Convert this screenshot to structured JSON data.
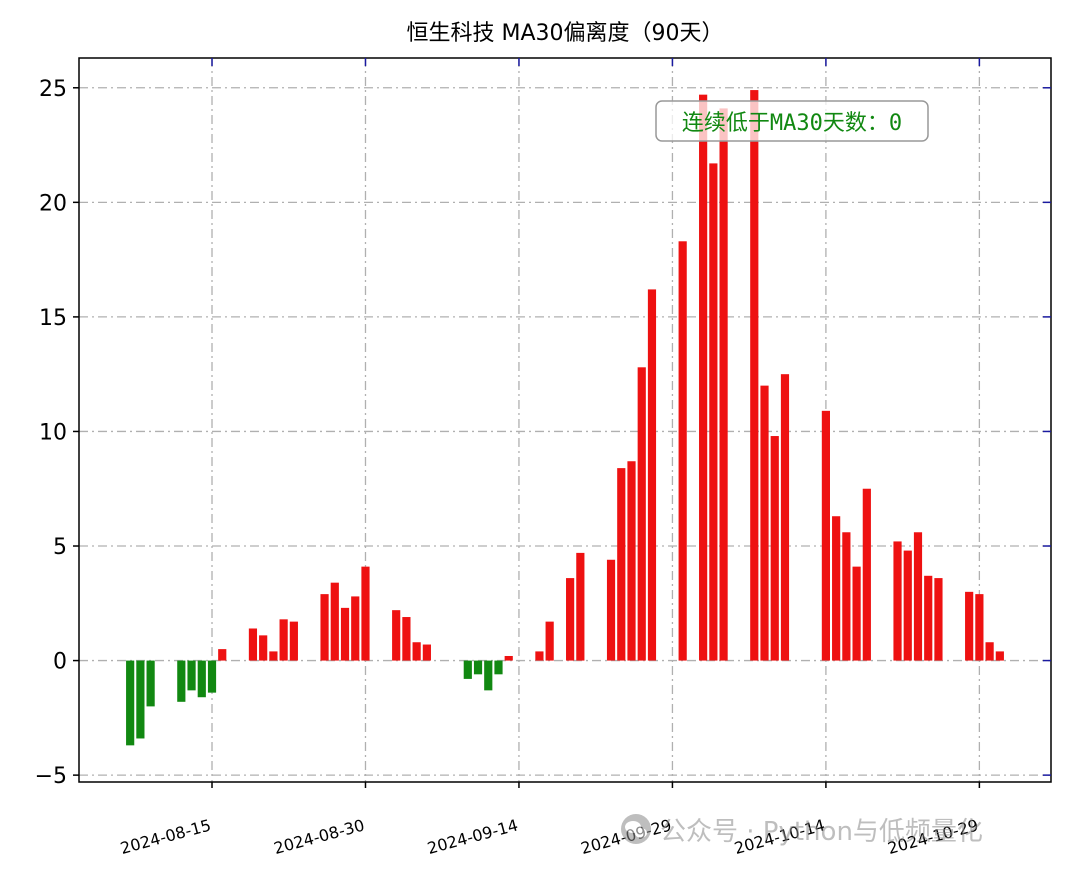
{
  "chart_data": {
    "type": "bar",
    "title": "恒生科技 MA30偏离度（90天）",
    "xlabel": "",
    "ylabel": "",
    "ylim": [
      -5.3,
      26.3
    ],
    "yticks": [
      -5,
      0,
      5,
      10,
      15,
      20,
      25
    ],
    "ytick_labels": [
      "−5",
      "0",
      "5",
      "10",
      "15",
      "20",
      "25"
    ],
    "x_ticks": [
      {
        "date": "2024-08-15",
        "label": "2024-08-15"
      },
      {
        "date": "2024-08-30",
        "label": "2024-08-30"
      },
      {
        "date": "2024-09-14",
        "label": "2024-09-14"
      },
      {
        "date": "2024-09-29",
        "label": "2024-09-29"
      },
      {
        "date": "2024-10-14",
        "label": "2024-10-14"
      },
      {
        "date": "2024-10-29",
        "label": "2024-10-29"
      }
    ],
    "x_range": [
      "2024-08-02",
      "2024-11-05"
    ],
    "grid": true,
    "positive_color": "#ee1111",
    "negative_color": "#118811",
    "series": [
      {
        "x": [
          "2024-08-07",
          "2024-08-08",
          "2024-08-09",
          "2024-08-12",
          "2024-08-13",
          "2024-08-14",
          "2024-08-15",
          "2024-08-16",
          "2024-08-19",
          "2024-08-20",
          "2024-08-21",
          "2024-08-22",
          "2024-08-23",
          "2024-08-26",
          "2024-08-27",
          "2024-08-28",
          "2024-08-29",
          "2024-08-30",
          "2024-09-02",
          "2024-09-03",
          "2024-09-04",
          "2024-09-05",
          "2024-09-09",
          "2024-09-10",
          "2024-09-11",
          "2024-09-12",
          "2024-09-13",
          "2024-09-16",
          "2024-09-17",
          "2024-09-19",
          "2024-09-20",
          "2024-09-23",
          "2024-09-24",
          "2024-09-25",
          "2024-09-26",
          "2024-09-27",
          "2024-09-30",
          "2024-10-02",
          "2024-10-03",
          "2024-10-04",
          "2024-10-07",
          "2024-10-08",
          "2024-10-09",
          "2024-10-10",
          "2024-10-14",
          "2024-10-15",
          "2024-10-16",
          "2024-10-17",
          "2024-10-18",
          "2024-10-21",
          "2024-10-22",
          "2024-10-23",
          "2024-10-24",
          "2024-10-25",
          "2024-10-28",
          "2024-10-29",
          "2024-10-30",
          "2024-10-31"
        ],
        "values": [
          -3.7,
          -3.4,
          -2.0,
          -1.8,
          -1.3,
          -1.6,
          -1.4,
          0.5,
          1.4,
          1.1,
          0.4,
          1.8,
          1.7,
          2.9,
          3.4,
          2.3,
          2.8,
          4.1,
          2.2,
          1.9,
          0.8,
          0.7,
          -0.8,
          -0.6,
          -1.3,
          -0.6,
          0.2,
          0.4,
          1.7,
          3.6,
          4.7,
          4.4,
          8.4,
          8.7,
          12.8,
          16.2,
          18.3,
          24.7,
          21.7,
          24.1,
          24.9,
          12.0,
          9.8,
          12.5,
          10.9,
          6.3,
          5.6,
          4.1,
          7.5,
          5.2,
          4.8,
          5.6,
          3.7,
          3.6,
          3.0,
          2.9,
          0.8,
          0.4
        ]
      }
    ],
    "annotation": "连续低于MA30天数：0"
  },
  "watermark": {
    "text": "公众号 · Python与低频量化",
    "icon": "wechat-icon"
  }
}
